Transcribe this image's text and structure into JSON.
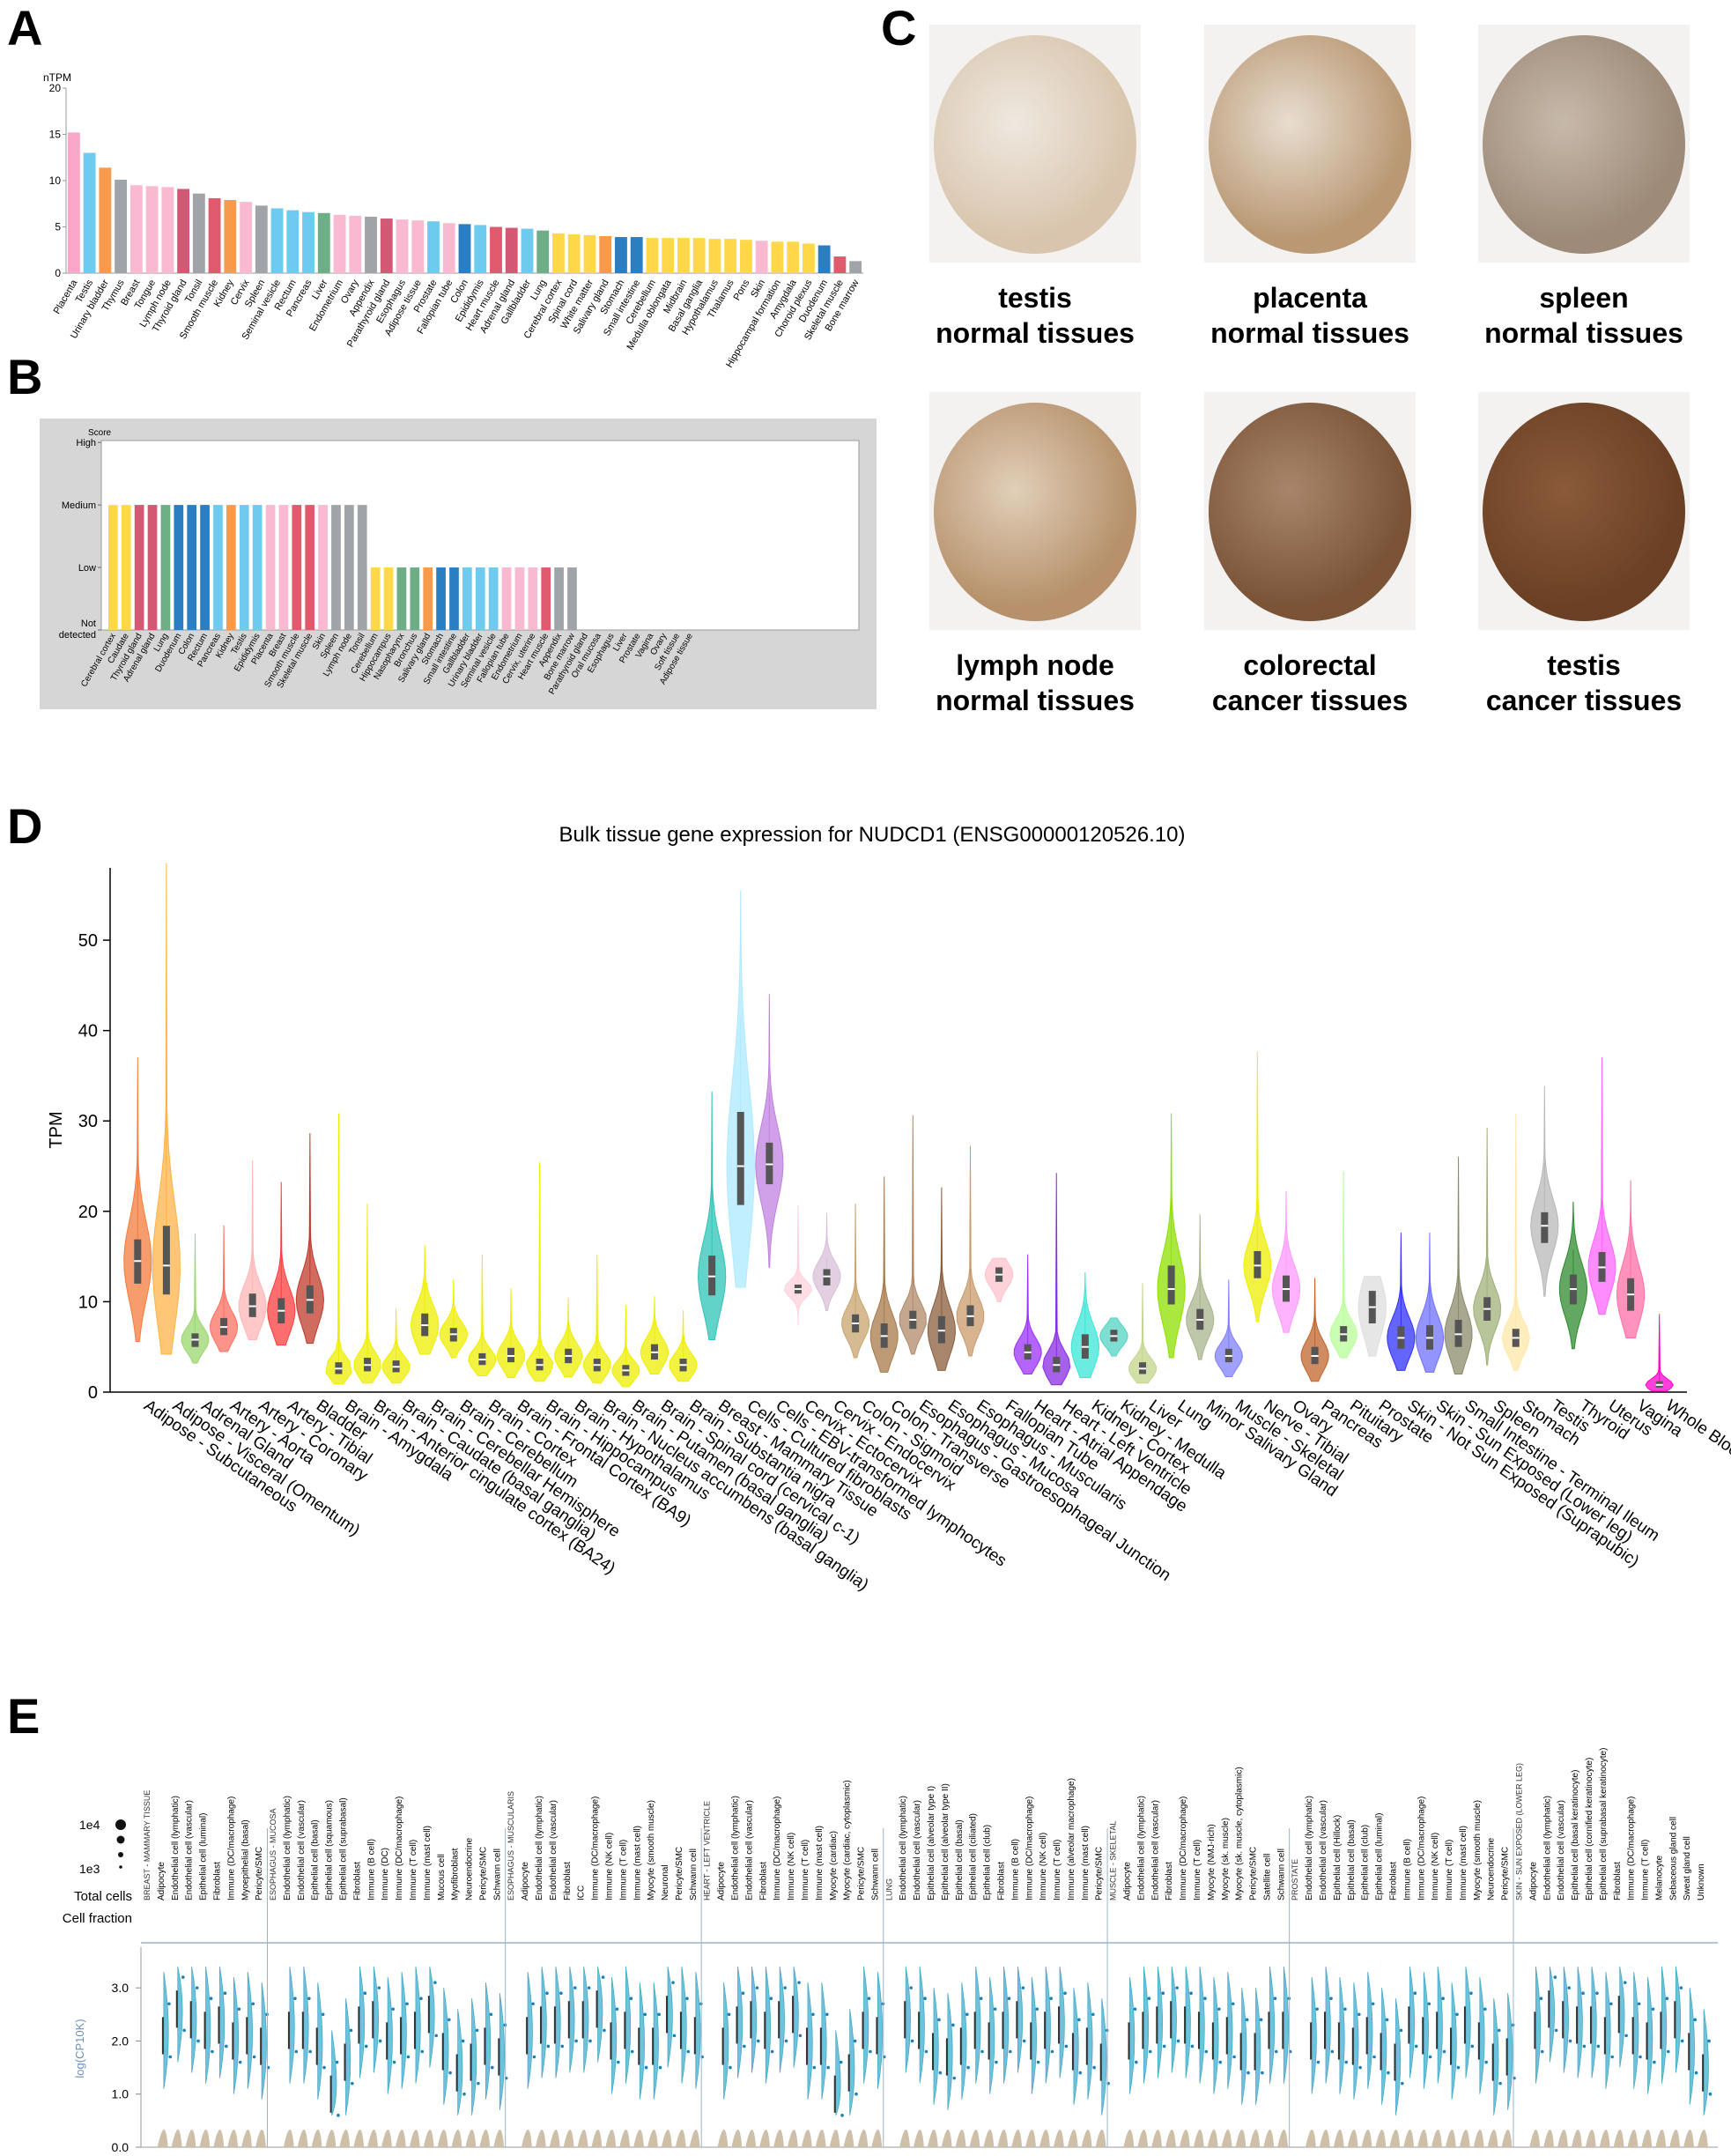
{
  "panels": {
    "a": "A",
    "b": "B",
    "c": "C",
    "d": "D",
    "e": "E"
  },
  "panel_a": {
    "chart_data": {
      "type": "bar",
      "ylabel": "nTPM",
      "ylim": [
        0,
        20
      ],
      "yticks": [
        0,
        5,
        10,
        15,
        20
      ],
      "categories": [
        "Placenta",
        "Testis",
        "Urinary bladder",
        "Thymus",
        "Breast",
        "Tongue",
        "Lymph node",
        "Thyroid gland",
        "Tonsil",
        "Smooth muscle",
        "Kidney",
        "Cervix",
        "Spleen",
        "Seminal vesicle",
        "Rectum",
        "Pancreas",
        "Liver",
        "Endometrium",
        "Ovary",
        "Appendix",
        "Parathyroid gland",
        "Esophagus",
        "Adipose tissue",
        "Prostate",
        "Fallopian tube",
        "Colon",
        "Epididymis",
        "Heart muscle",
        "Adrenal gland",
        "Gallbladder",
        "Lung",
        "Cerebral cortex",
        "Spinal cord",
        "White matter",
        "Salivary gland",
        "Stomach",
        "Small intestine",
        "Cerebellum",
        "Medulla oblongata",
        "Midbrain",
        "Basal ganglia",
        "Hypothalamus",
        "Thalamus",
        "Pons",
        "Skin",
        "Hippocampal formation",
        "Amygdala",
        "Choroid plexus",
        "Duodenum",
        "Skeletal muscle",
        "Bone marrow"
      ],
      "values": [
        15.2,
        13.0,
        11.4,
        10.1,
        9.5,
        9.4,
        9.3,
        9.1,
        8.6,
        8.1,
        7.9,
        7.7,
        7.3,
        7.0,
        6.8,
        6.6,
        6.5,
        6.3,
        6.2,
        6.1,
        5.9,
        5.8,
        5.7,
        5.6,
        5.4,
        5.3,
        5.2,
        5.0,
        4.9,
        4.8,
        4.6,
        4.3,
        4.2,
        4.1,
        4.0,
        3.9,
        3.9,
        3.8,
        3.8,
        3.8,
        3.8,
        3.7,
        3.7,
        3.6,
        3.5,
        3.4,
        3.4,
        3.2,
        3.0,
        1.8,
        1.3
      ],
      "colors": [
        "#f9a7c8",
        "#6fcaf0",
        "#f79a4c",
        "#a0a4a8",
        "#f9b9d0",
        "#f9b9d0",
        "#f9b9d0",
        "#d35874",
        "#a0a4a8",
        "#e05a6e",
        "#f79a4c",
        "#f9b9d0",
        "#a0a4a8",
        "#6fcaf0",
        "#6fcaf0",
        "#6fcaf0",
        "#6dae86",
        "#f9b9d0",
        "#f9b9d0",
        "#a0a4a8",
        "#d35874",
        "#f9b9d0",
        "#f9b9d0",
        "#6fcaf0",
        "#f9b9d0",
        "#2b7ec2",
        "#6fcaf0",
        "#e05a6e",
        "#d35874",
        "#6fcaf0",
        "#6dae86",
        "#ffd84a",
        "#ffd84a",
        "#ffd84a",
        "#f79a4c",
        "#2b7ec2",
        "#2b7ec2",
        "#ffd84a",
        "#ffd84a",
        "#ffd84a",
        "#ffd84a",
        "#ffd84a",
        "#ffd84a",
        "#ffd84a",
        "#f9b9d0",
        "#ffd84a",
        "#ffd84a",
        "#ffd84a",
        "#2b7ec2",
        "#e05a6e",
        "#a0a4a8"
      ]
    }
  },
  "panel_b": {
    "chart_data": {
      "type": "bar",
      "ylabel": "Score",
      "ylevels": [
        "Not detected",
        "Low",
        "Medium",
        "High"
      ],
      "categories": [
        "Cerebral cortex",
        "Caudate",
        "Thyroid gland",
        "Adrenal gland",
        "Lung",
        "Duodenum",
        "Colon",
        "Rectum",
        "Pancreas",
        "Kidney",
        "Testis",
        "Epididymis",
        "Placenta",
        "Breast",
        "Smooth muscle",
        "Skeletal muscle",
        "Skin",
        "Spleen",
        "Lymph node",
        "Tonsil",
        "Cerebellum",
        "Hippocampus",
        "Nasopharynx",
        "Bronchus",
        "Salivary gland",
        "Stomach",
        "Small intestine",
        "Gallbladder",
        "Urinary bladder",
        "Seminal vesicle",
        "Fallopian tube",
        "Endometrium",
        "Cervix, uterine",
        "Heart muscle",
        "Appendix",
        "Bone marrow",
        "Parathyroid gland",
        "Oral mucosa",
        "Esophagus",
        "Liver",
        "Prostate",
        "Vagina",
        "Ovary",
        "Soft tissue",
        "Adipose tissue"
      ],
      "values": [
        2,
        2,
        2,
        2,
        2,
        2,
        2,
        2,
        2,
        2,
        2,
        2,
        2,
        2,
        2,
        2,
        2,
        2,
        2,
        2,
        1,
        1,
        1,
        1,
        1,
        1,
        1,
        1,
        1,
        1,
        1,
        1,
        1,
        1,
        1,
        1,
        0,
        0,
        0,
        0,
        0,
        0,
        0,
        0,
        0
      ],
      "colors": [
        "#ffd84a",
        "#ffd84a",
        "#d35874",
        "#d35874",
        "#6dae86",
        "#2b7ec2",
        "#2b7ec2",
        "#2b7ec2",
        "#6fcaf0",
        "#f79a4c",
        "#6fcaf0",
        "#6fcaf0",
        "#f9b9d0",
        "#f9b9d0",
        "#e05a6e",
        "#e05a6e",
        "#f9b9d0",
        "#a0a4a8",
        "#a0a4a8",
        "#a0a4a8",
        "#ffd84a",
        "#ffd84a",
        "#6dae86",
        "#6dae86",
        "#f79a4c",
        "#2b7ec2",
        "#2b7ec2",
        "#6fcaf0",
        "#6fcaf0",
        "#6fcaf0",
        "#f9b9d0",
        "#f9b9d0",
        "#f9b9d0",
        "#e05a6e",
        "#a0a4a8",
        "#a0a4a8",
        "#d35874",
        "#f9b9d0",
        "#f9b9d0",
        "#6dae86",
        "#6fcaf0",
        "#f9b9d0",
        "#f9b9d0",
        "#a0a4a8",
        "#a0a4a8"
      ]
    }
  },
  "panel_c": {
    "images": [
      {
        "line1": "testis",
        "line2": "normal tissues",
        "stain": "#d9c5ad",
        "bg": "#eee8e0"
      },
      {
        "line1": "placenta",
        "line2": "normal tissues",
        "stain": "#b99873",
        "bg": "#e8ddd0"
      },
      {
        "line1": "spleen",
        "line2": "normal tissues",
        "stain": "#9d8a78",
        "bg": "#c7b9aa"
      },
      {
        "line1": "lymph node",
        "line2": "normal tissues",
        "stain": "#b6916b",
        "bg": "#e1cfb9"
      },
      {
        "line1": "colorectal",
        "line2": "cancer tissues",
        "stain": "#7b5438",
        "bg": "#a8856a"
      },
      {
        "line1": "testis",
        "line2": "cancer tissues",
        "stain": "#6b4024",
        "bg": "#8a5a3a"
      }
    ]
  },
  "panel_d": {
    "chart_data": {
      "type": "violin",
      "title": "Bulk tissue gene expression for NUDCD1 (ENSG00000120526.10)",
      "ylabel": "TPM",
      "ylim": [
        0,
        58
      ],
      "yticks": [
        0,
        10,
        20,
        30,
        40,
        50
      ],
      "categories": [
        "Adipose - Subcutaneous",
        "Adipose - Visceral (Omentum)",
        "Adrenal Gland",
        "Artery - Aorta",
        "Artery - Coronary",
        "Artery - Tibial",
        "Bladder",
        "Brain - Amygdala",
        "Brain - Anterior cingulate cortex (BA24)",
        "Brain - Caudate (basal ganglia)",
        "Brain - Cerebellar Hemisphere",
        "Brain - Cerebellum",
        "Brain - Cortex",
        "Brain - Frontal Cortex (BA9)",
        "Brain - Hippocampus",
        "Brain - Hypothalamus",
        "Brain - Nucleus accumbens (basal ganglia)",
        "Brain - Putamen (basal ganglia)",
        "Brain - Spinal cord (cervical c-1)",
        "Brain - Substantia nigra",
        "Breast - Mammary Tissue",
        "Cells - Cultured fibroblasts",
        "Cells - EBV-transformed lymphocytes",
        "Cervix - Ectocervix",
        "Cervix - Endocervix",
        "Colon - Sigmoid",
        "Colon - Transverse",
        "Esophagus - Gastroesophageal Junction",
        "Esophagus - Mucosa",
        "Esophagus - Muscularis",
        "Fallopian Tube",
        "Heart - Atrial Appendage",
        "Heart - Left Ventricle",
        "Kidney - Cortex",
        "Kidney - Medulla",
        "Liver",
        "Lung",
        "Minor Salivary Gland",
        "Muscle - Skeletal",
        "Nerve - Tibial",
        "Ovary",
        "Pancreas",
        "Pituitary",
        "Prostate",
        "Skin - Not Sun Exposed (Suprapubic)",
        "Skin - Sun Exposed (Lower leg)",
        "Small Intestine - Terminal Ileum",
        "Spleen",
        "Stomach",
        "Testis",
        "Thyroid",
        "Uterus",
        "Vagina",
        "Whole Blood"
      ],
      "median": [
        14.5,
        14.0,
        5.8,
        7.2,
        9.5,
        9.0,
        10.2,
        2.6,
        3.0,
        2.8,
        7.4,
        6.4,
        3.6,
        4.0,
        3.0,
        4.0,
        3.0,
        2.4,
        4.4,
        3.0,
        12.8,
        25.0,
        25.2,
        11.4,
        12.8,
        7.6,
        6.2,
        8.0,
        6.8,
        8.4,
        13.0,
        4.4,
        3.0,
        5.0,
        6.2,
        2.6,
        11.4,
        8.0,
        4.0,
        14.0,
        11.4,
        4.0,
        6.4,
        9.4,
        6.0,
        6.0,
        6.4,
        9.2,
        6.0,
        18.4,
        11.4,
        13.8,
        10.8,
        0.8
      ],
      "q1": [
        12.0,
        10.8,
        5.0,
        6.3,
        8.3,
        7.6,
        8.7,
        2.0,
        2.3,
        2.2,
        6.2,
        5.6,
        3.0,
        3.3,
        2.4,
        3.2,
        2.3,
        1.8,
        3.6,
        2.3,
        10.7,
        20.7,
        23.0,
        10.9,
        11.8,
        6.6,
        4.9,
        7.0,
        5.4,
        7.3,
        12.2,
        3.6,
        2.2,
        3.7,
        5.6,
        2.0,
        9.7,
        6.9,
        3.3,
        12.6,
        10.0,
        3.1,
        5.6,
        7.6,
        4.8,
        4.7,
        5.0,
        7.9,
        5.0,
        16.5,
        9.7,
        12.2,
        9.0,
        0.5
      ],
      "q3": [
        16.9,
        18.4,
        6.5,
        8.2,
        10.9,
        10.4,
        11.8,
        3.3,
        3.8,
        3.5,
        8.7,
        7.1,
        4.3,
        4.9,
        3.7,
        4.8,
        3.7,
        3.0,
        5.3,
        3.7,
        15.1,
        31.0,
        27.6,
        11.9,
        13.6,
        8.6,
        7.6,
        9.0,
        8.4,
        9.6,
        13.8,
        5.3,
        3.9,
        6.4,
        6.9,
        3.3,
        14.0,
        9.2,
        4.8,
        15.6,
        12.9,
        5.0,
        7.3,
        11.2,
        7.3,
        7.4,
        8.0,
        10.5,
        7.0,
        19.9,
        13.0,
        15.5,
        12.6,
        1.2
      ],
      "min": [
        5.6,
        4.2,
        3.2,
        4.5,
        5.8,
        5.2,
        5.4,
        0.9,
        1.0,
        1.0,
        4.2,
        3.8,
        1.8,
        1.6,
        1.2,
        1.7,
        1.0,
        0.6,
        2.0,
        1.2,
        5.8,
        11.6,
        13.8,
        7.4,
        9.0,
        3.8,
        2.2,
        4.2,
        2.4,
        4.0,
        10.0,
        2.0,
        0.8,
        1.6,
        4.0,
        1.0,
        3.8,
        3.6,
        1.7,
        7.8,
        6.6,
        1.2,
        3.8,
        4.0,
        2.4,
        2.2,
        2.0,
        3.0,
        2.4,
        10.6,
        4.8,
        8.6,
        6.0,
        0.1
      ],
      "max": [
        37.0,
        58.5,
        17.5,
        18.4,
        25.6,
        23.2,
        28.6,
        30.8,
        20.8,
        9.2,
        16.2,
        12.4,
        15.2,
        11.4,
        25.4,
        10.4,
        15.2,
        9.6,
        10.6,
        9.0,
        33.2,
        55.4,
        44.0,
        20.6,
        19.8,
        20.8,
        23.8,
        30.6,
        22.6,
        27.2,
        14.8,
        15.2,
        24.2,
        13.2,
        8.2,
        12.0,
        30.8,
        19.6,
        12.4,
        37.6,
        22.2,
        12.6,
        24.4,
        12.8,
        17.6,
        17.6,
        26.0,
        29.2,
        30.8,
        33.8,
        21.0,
        37.0,
        23.4,
        8.6
      ],
      "colors": [
        "#f47c3c",
        "#ffb347",
        "#9ad66c",
        "#ff6f61",
        "#ffb6b6",
        "#ff3d3d",
        "#c0392b",
        "#eeee00",
        "#eeee00",
        "#eeee00",
        "#eeee00",
        "#eeee00",
        "#eeee00",
        "#eeee00",
        "#eeee00",
        "#eeee00",
        "#eeee00",
        "#eeee00",
        "#eeee00",
        "#eeee00",
        "#2ec4b6",
        "#aeeaff",
        "#c080e0",
        "#ffd1dc",
        "#d8bfd8",
        "#c8a46e",
        "#a87a4a",
        "#b08968",
        "#8b5e3c",
        "#c99a6b",
        "#ffc1cc",
        "#9b30ff",
        "#8a2be2",
        "#3ae6d6",
        "#53d3c2",
        "#c3d68a",
        "#8ee000",
        "#a8b48c",
        "#8080ff",
        "#eeee00",
        "#ff99ff",
        "#c0642c",
        "#b8ff99",
        "#dddddd",
        "#3030ff",
        "#7070ff",
        "#8b8b6b",
        "#a0b078",
        "#ffe7a8",
        "#b8b8b8",
        "#2e8b2e",
        "#ff66ff",
        "#ff6fa7",
        "#ff00cc"
      ]
    }
  },
  "panel_e": {
    "scale_labels": [
      "1e4",
      "1e3"
    ],
    "row_labels": [
      "Total cells",
      "Cell fraction"
    ],
    "ylabel": "log(CP10K)",
    "yticks": [
      "0.0",
      "1.0",
      "2.0",
      "3.0"
    ],
    "groups": [
      {
        "name": "BREAST - MAMMARY TISSUE",
        "cells": [
          "Adipocyte",
          "Endothelial cell (lymphatic)",
          "Endothelial cell (vascular)",
          "Epithelial cell (luminal)",
          "Fibroblast",
          "Immune (DC/macrophage)",
          "Myoepithelial (basal)",
          "Pericyte/SMC"
        ],
        "medians": [
          2.1,
          2.6,
          2.4,
          2.2,
          2.3,
          2.0,
          2.1,
          1.9
        ]
      },
      {
        "name": "ESOPHAGUS - MUCOSA",
        "cells": [
          "Endothelial cell (lymphatic)",
          "Endothelial cell (vascular)",
          "Epithelial cell (basal)",
          "Epithelial cell (squamous)",
          "Epithelial cell (suprabasal)",
          "Fibroblast",
          "Immune (B cell)",
          "Immune (DC)",
          "Immune (DC/macrophage)",
          "Immune (T cell)",
          "Immune (mast cell)",
          "Mucous cell",
          "Myofibroblast",
          "Neuroendocrine",
          "Pericyte/SMC",
          "Schwann cell"
        ],
        "medians": [
          2.2,
          2.2,
          1.9,
          1.0,
          1.6,
          2.3,
          2.4,
          2.0,
          2.1,
          2.2,
          2.5,
          1.8,
          1.4,
          1.6,
          1.9,
          1.7
        ]
      },
      {
        "name": "ESOPHAGUS - MUSCULARIS",
        "cells": [
          "Adipocyte",
          "Endothelial cell (lymphatic)",
          "Endothelial cell (vascular)",
          "Fibroblast",
          "ICC",
          "Immune (DC/macrophage)",
          "Immune (NK cell)",
          "Immune (T cell)",
          "Immune (mast cell)",
          "Myocyte (smooth muscle)",
          "Neuronal",
          "Pericyte/SMC",
          "Schwann cell"
        ],
        "medians": [
          2.1,
          2.3,
          2.3,
          2.4,
          2.4,
          2.6,
          2.0,
          2.2,
          1.9,
          1.9,
          2.5,
          2.2,
          2.1
        ]
      },
      {
        "name": "HEART - LEFT VENTRICLE",
        "cells": [
          "Adipocyte",
          "Endothelial cell (lymphatic)",
          "Endothelial cell (vascular)",
          "Fibroblast",
          "Immune (DC/macrophage)",
          "Immune (NK cell)",
          "Immune (T cell)",
          "Immune (mast cell)",
          "Myocyte (cardiac)",
          "Myocyte (cardiac, cytoplasmic)",
          "Pericyte/SMC",
          "Schwann cell"
        ],
        "medians": [
          1.9,
          2.3,
          2.4,
          2.2,
          2.4,
          2.5,
          1.9,
          1.9,
          1.0,
          1.4,
          2.2,
          2.1
        ]
      },
      {
        "name": "LUNG",
        "cells": [
          "Endothelial cell (lymphatic)",
          "Endothelial cell (vascular)",
          "Epithelial cell (alveolar type I)",
          "Epithelial cell (alveolar type II)",
          "Epithelial cell (basal)",
          "Epithelial cell (ciliated)",
          "Epithelial cell (club)",
          "Fibroblast",
          "Immune (B cell)",
          "Immune (DC/macrophage)",
          "Immune (NK cell)",
          "Immune (T cell)",
          "Immune (alveolar macrophage)",
          "Immune (mast cell)",
          "Pericyte/SMC"
        ],
        "medians": [
          2.4,
          2.2,
          1.8,
          1.7,
          1.9,
          2.2,
          2.0,
          2.2,
          2.4,
          2.0,
          2.2,
          2.3,
          1.8,
          1.9,
          1.6
        ]
      },
      {
        "name": "MUSCLE - SKELETAL",
        "cells": [
          "Adipocyte",
          "Endothelial cell (lymphatic)",
          "Endothelial cell (vascular)",
          "Fibroblast",
          "Immune (DC/macrophage)",
          "Immune (T cell)",
          "Myocyte (NMJ-rich)",
          "Myocyte (sk. muscle)",
          "Myocyte (sk. muscle, cytoplasmic)",
          "Pericyte/SMC",
          "Satellite cell",
          "Schwann cell"
        ],
        "medians": [
          2.0,
          2.2,
          2.3,
          2.4,
          2.3,
          2.2,
          2.0,
          2.1,
          1.8,
          1.8,
          2.2,
          2.2
        ]
      },
      {
        "name": "PROSTATE",
        "cells": [
          "Endothelial cell (lymphatic)",
          "Endothelial cell (vascular)",
          "Epithelial cell (Hillock)",
          "Epithelial cell (basal)",
          "Epithelial cell (club)",
          "Epithelial cell (luminal)",
          "Fibroblast",
          "Immune (B cell)",
          "Immune (DC/macrophage)",
          "Immune (NK cell)",
          "Immune (T cell)",
          "Immune (mast cell)",
          "Myocyte (smooth muscle)",
          "Neuroendocrine",
          "Pericyte/SMC"
        ],
        "medians": [
          2.0,
          2.2,
          2.0,
          1.9,
          2.1,
          1.8,
          1.6,
          2.3,
          2.1,
          2.2,
          1.9,
          2.3,
          2.0,
          1.6,
          1.7
        ]
      },
      {
        "name": "SKIN - SUN EXPOSED (LOWER LEG)",
        "cells": [
          "Adipocyte",
          "Endothelial cell (lymphatic)",
          "Endothelial cell (vascular)",
          "Epithelial cell (basal keratinocyte)",
          "Epithelial cell (cornified keratinocyte)",
          "Epithelial cell (suprabasal keratinocyte)",
          "Fibroblast",
          "Immune (DC/macrophage)",
          "Immune (T cell)",
          "Melanocyte",
          "Sebaceous gland cell",
          "Sweat gland cell",
          "Unknown"
        ],
        "medians": [
          2.2,
          2.6,
          2.4,
          2.3,
          2.3,
          2.1,
          2.5,
          2.1,
          2.0,
          2.2,
          2.4,
          1.8,
          1.4
        ]
      }
    ]
  }
}
